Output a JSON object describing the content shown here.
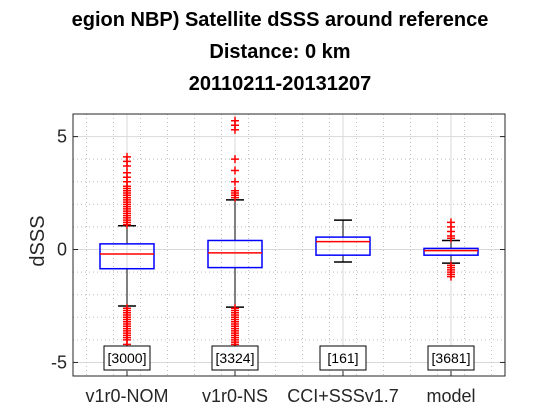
{
  "chart_data": {
    "type": "box",
    "title_lines": [
      "egion NBP) Satellite dSSS around reference",
      "Distance: 0 km",
      "20110211-20131207"
    ],
    "ylabel": "dSSS",
    "xlabel": "",
    "ylim": [
      -5.6,
      6.0
    ],
    "yticks": [
      -5,
      0,
      5
    ],
    "grid": true,
    "categories": [
      "v1r0-NOM",
      "v1r0-NS",
      "CCI+SSSv1.7",
      "model"
    ],
    "count_labels": [
      "[3000]",
      "[3324]",
      "[161]",
      "[3681]"
    ],
    "boxes": [
      {
        "q1": -0.85,
        "median": -0.2,
        "q3": 0.25,
        "whisker_low": -2.5,
        "whisker_high": 1.05
      },
      {
        "q1": -0.8,
        "median": -0.15,
        "q3": 0.4,
        "whisker_low": -2.55,
        "whisker_high": 2.2
      },
      {
        "q1": -0.25,
        "median": 0.35,
        "q3": 0.55,
        "whisker_low": -0.55,
        "whisker_high": 1.3
      },
      {
        "q1": -0.25,
        "median": -0.05,
        "q3": 0.05,
        "whisker_low": -0.6,
        "whisker_high": 0.4
      }
    ],
    "outliers": [
      [
        4.1,
        3.9,
        3.7,
        3.4,
        3.2,
        3.0,
        2.8,
        2.7,
        2.6,
        2.5,
        2.4,
        2.3,
        2.2,
        2.1,
        2.0,
        1.9,
        1.8,
        1.7,
        1.6,
        1.5,
        1.4,
        1.3,
        1.2,
        1.1,
        -2.6,
        -2.7,
        -2.8,
        -2.9,
        -3.0,
        -3.1,
        -3.2,
        -3.3,
        -3.4,
        -3.5,
        -3.6,
        -3.7,
        -3.8,
        -3.9,
        -4.0,
        -4.2
      ],
      [
        5.7,
        5.5,
        5.3,
        4.0,
        3.5,
        3.0,
        2.6,
        2.5,
        2.4,
        2.3,
        -2.6,
        -2.7,
        -2.8,
        -2.9,
        -3.0,
        -3.1,
        -3.2,
        -3.3,
        -3.4,
        -3.5,
        -3.6,
        -3.7,
        -3.8,
        -3.9,
        -4.0,
        -4.1,
        -4.2,
        -4.3,
        -4.4,
        -4.5,
        -4.6,
        -4.7,
        -4.8,
        -4.9,
        -5.0
      ],
      [],
      [
        1.2,
        1.0,
        0.8,
        0.6,
        0.5,
        -0.7,
        -0.8,
        -0.9,
        -1.0,
        -1.1,
        -1.2
      ]
    ],
    "colors": {
      "box": "#0000ff",
      "median": "#ff0000",
      "whisker": "#000000",
      "outlier": "#ff0000",
      "grid": "#d9d9d9",
      "axis": "#262626"
    }
  }
}
